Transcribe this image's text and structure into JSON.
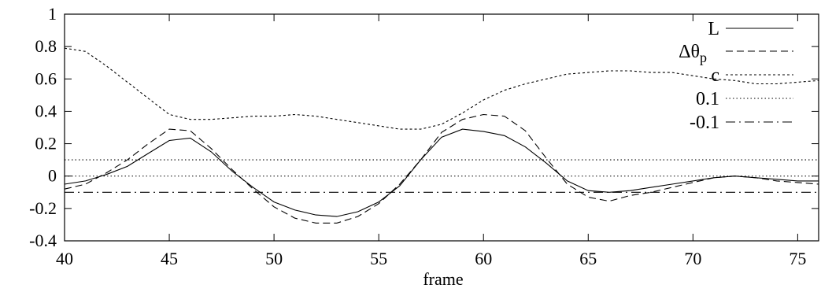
{
  "chart_data": {
    "type": "line",
    "title": "",
    "xlabel": "frame",
    "ylabel": "",
    "xlim": [
      40,
      76
    ],
    "ylim": [
      -0.4,
      1
    ],
    "xticks": [
      40,
      45,
      50,
      55,
      60,
      65,
      70,
      75
    ],
    "yticks": [
      -0.4,
      -0.2,
      0,
      0.2,
      0.4,
      0.6,
      0.8,
      1
    ],
    "xtick_labels": [
      "40",
      "45",
      "50",
      "55",
      "60",
      "65",
      "70",
      "75"
    ],
    "ytick_labels": [
      "-0.4",
      "-0.2",
      "0",
      "0.2",
      "0.4",
      "0.6",
      "0.8",
      "1"
    ],
    "grid": false,
    "legend_position": "top-right",
    "series": [
      {
        "name": "L",
        "style": "solid",
        "x": [
          40,
          41,
          42,
          43,
          44,
          45,
          46,
          47,
          48,
          49,
          50,
          51,
          52,
          53,
          54,
          55,
          56,
          57,
          58,
          59,
          60,
          61,
          62,
          63,
          64,
          65,
          66,
          67,
          68,
          69,
          70,
          71,
          72,
          73,
          74,
          75,
          76
        ],
        "y": [
          -0.05,
          -0.03,
          0.01,
          0.06,
          0.14,
          0.22,
          0.235,
          0.15,
          0.03,
          -0.07,
          -0.16,
          -0.21,
          -0.24,
          -0.25,
          -0.22,
          -0.16,
          -0.06,
          0.1,
          0.24,
          0.29,
          0.275,
          0.25,
          0.18,
          0.08,
          -0.03,
          -0.09,
          -0.1,
          -0.09,
          -0.07,
          -0.05,
          -0.03,
          -0.01,
          0.0,
          -0.01,
          -0.02,
          -0.03,
          -0.03
        ]
      },
      {
        "name": "Δθp",
        "style": "dashed",
        "x": [
          40,
          41,
          42,
          43,
          44,
          45,
          46,
          47,
          48,
          49,
          50,
          51,
          52,
          53,
          54,
          55,
          56,
          57,
          58,
          59,
          60,
          61,
          62,
          63,
          64,
          65,
          66,
          67,
          68,
          69,
          70,
          71,
          72,
          73,
          74,
          75,
          76
        ],
        "y": [
          -0.08,
          -0.05,
          0.02,
          0.1,
          0.2,
          0.29,
          0.28,
          0.17,
          0.04,
          -0.08,
          -0.19,
          -0.26,
          -0.29,
          -0.29,
          -0.25,
          -0.17,
          -0.05,
          0.1,
          0.27,
          0.35,
          0.38,
          0.37,
          0.28,
          0.11,
          -0.05,
          -0.13,
          -0.155,
          -0.12,
          -0.1,
          -0.07,
          -0.04,
          -0.01,
          0.0,
          -0.01,
          -0.03,
          -0.04,
          -0.05
        ]
      },
      {
        "name": "c",
        "style": "dotted-fine",
        "x": [
          40,
          41,
          42,
          43,
          44,
          45,
          46,
          47,
          48,
          49,
          50,
          51,
          52,
          53,
          54,
          55,
          56,
          57,
          58,
          59,
          60,
          61,
          62,
          63,
          64,
          65,
          66,
          67,
          68,
          69,
          70,
          71,
          72,
          73,
          74,
          75,
          76
        ],
        "y": [
          0.79,
          0.77,
          0.68,
          0.58,
          0.48,
          0.38,
          0.35,
          0.35,
          0.36,
          0.37,
          0.37,
          0.38,
          0.37,
          0.35,
          0.33,
          0.31,
          0.29,
          0.29,
          0.32,
          0.39,
          0.47,
          0.53,
          0.57,
          0.6,
          0.63,
          0.64,
          0.65,
          0.65,
          0.64,
          0.64,
          0.62,
          0.6,
          0.59,
          0.57,
          0.57,
          0.58,
          0.59
        ]
      },
      {
        "name": "0.1",
        "style": "dotted",
        "x": [
          40,
          76
        ],
        "y": [
          0.1,
          0.1
        ]
      },
      {
        "name": "-0.1",
        "style": "dashdot",
        "x": [
          40,
          76
        ],
        "y": [
          -0.1,
          -0.1
        ]
      }
    ],
    "reference_lines": [
      {
        "y": 0,
        "style": "dotted"
      }
    ]
  }
}
